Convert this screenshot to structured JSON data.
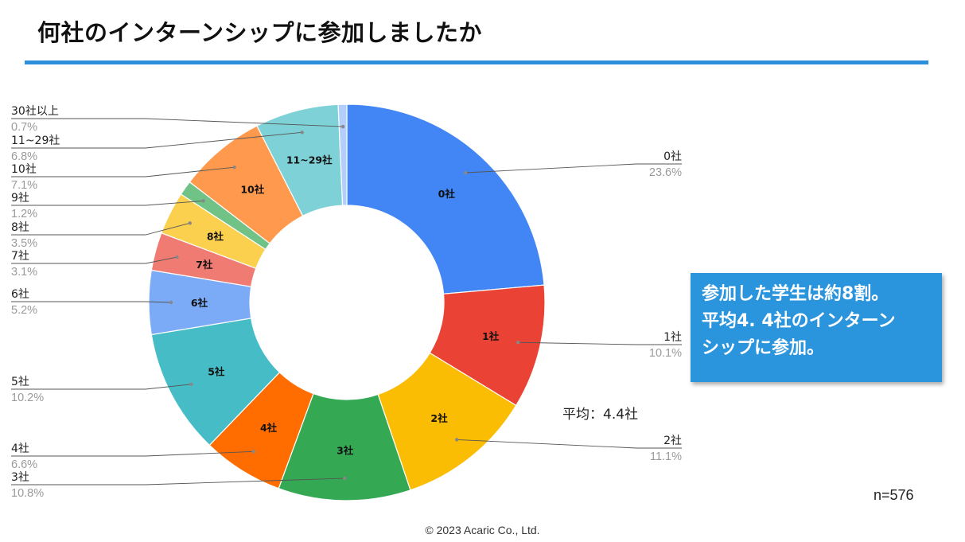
{
  "header": {
    "title": "何社のインターンシップに参加しましたか"
  },
  "chart_data": {
    "type": "pie",
    "variant": "donut",
    "title": "何社のインターンシップに参加しましたか",
    "unit": "%",
    "categories": [
      "0社",
      "1社",
      "2社",
      "3社",
      "4社",
      "5社",
      "6社",
      "7社",
      "8社",
      "9社",
      "10社",
      "11~29社",
      "30社以上"
    ],
    "inner_labels": [
      "0社",
      "1社",
      "2社",
      "3社",
      "4社",
      "5社",
      "6社",
      "7社",
      "8社",
      "",
      "10社",
      "11~29社",
      ""
    ],
    "percent_labels": [
      "23.6%",
      "10.1%",
      "11.1%",
      "10.8%",
      "6.6%",
      "10.2%",
      "5.2%",
      "3.1%",
      "3.5%",
      "1.2%",
      "7.1%",
      "6.8%",
      "0.7%"
    ],
    "values": [
      23.6,
      10.1,
      11.1,
      10.8,
      6.6,
      10.2,
      5.2,
      3.1,
      3.5,
      1.2,
      7.1,
      6.8,
      0.7
    ],
    "colors": [
      "#4285f4",
      "#ea4335",
      "#fbbc04",
      "#34a853",
      "#ff6d01",
      "#46bdc6",
      "#7baaf7",
      "#f07b72",
      "#fcd04f",
      "#71c287",
      "#ff994d",
      "#7ed1d7",
      "#b3cefb"
    ],
    "direction": "clockwise",
    "start": "top",
    "legend": "callout-labels"
  },
  "annotations": {
    "average": "平均：4.4社",
    "sample_size": "n=576"
  },
  "callout": {
    "lines": [
      "参加した学生は約8割。",
      "平均4. 4社のインターン",
      "シップに参加。"
    ]
  },
  "footer": {
    "copyright": "© 2023 Acaric Co., Ltd."
  }
}
